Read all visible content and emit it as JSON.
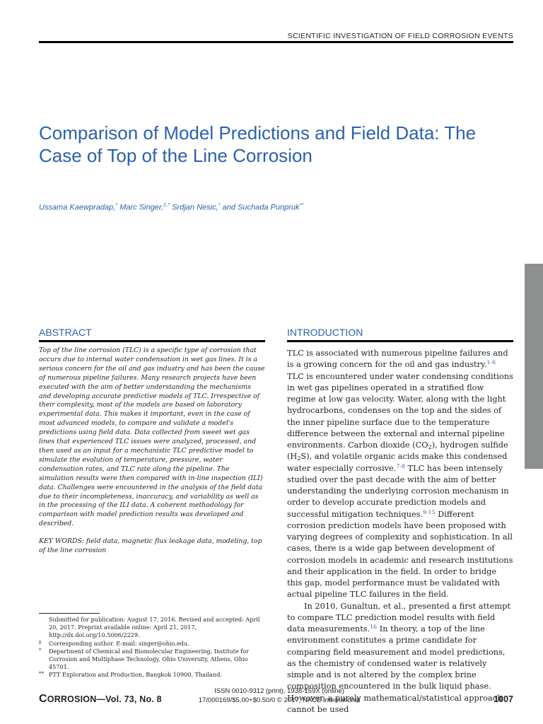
{
  "header": {
    "running_head": "SCIENTIFIC INVESTIGATION OF FIELD CORROSION EVENTS"
  },
  "article": {
    "title": "Comparison of Model Predictions and Field Data: The Case of Top of the Line Corrosion",
    "authors": {
      "a1": "Ussama Kaewpradap,",
      "a1_mark": "*",
      "a2": " Marc Singer,",
      "a2_mark": "‡,*",
      "a3": " Srdjan Nesic,",
      "a3_mark": "*",
      "a4": " and Suchada Punpruk",
      "a4_mark": "**"
    }
  },
  "abstract": {
    "heading": "ABSTRACT",
    "body": "Top of the line corrosion (TLC) is a specific type of corrosion that occurs due to internal water condensation in wet gas lines. It is a serious concern for the oil and gas industry and has been the cause of numerous pipeline failures. Many research projects have been executed with the aim of better understanding the mechanisms and developing accurate predictive models of TLC. Irrespective of their complexity, most of the models are based on laboratory experimental data. This makes it important, even in the case of most advanced models, to compare and validate a model's predictions using field data. Data collected from sweet wet gas lines that experienced TLC issues were analyzed, processed, and then used as an input for a mechanistic TLC predictive model to simulate the evolution of temperature, pressure, water condensation rates, and TLC rate along the pipeline. The simulation results were then compared with in-line inspection (ILI) data. Challenges were encountered in the analysis of the field data due to their incompleteness, inaccuracy, and variability as well as in the processing of the ILI data. A coherent methodology for comparison with model prediction results was developed and described.",
    "keywords": "KEY WORDS: field data, magnetic flux leakage data, modeling, top of the line corrosion"
  },
  "footnotes": [
    {
      "mark": "",
      "text": "Submitted for publication: August 17, 2016. Revised and accepted: April 20, 2017. Preprint available online: April 21, 2017, http://dx.doi.org/10.5006/2229."
    },
    {
      "mark": "‡",
      "text": "Corresponding author. E-mail: singer@ohio.edu."
    },
    {
      "mark": "*",
      "text": "Department of Chemical and Biomolecular Engineering, Institute for Corrosion and Multiphase Technology, Ohio University, Athens, Ohio 45701."
    },
    {
      "mark": "**",
      "text": "PTT Exploration and Production, Bangkok 10900, Thailand."
    }
  ],
  "introduction": {
    "heading": "INTRODUCTION",
    "p1": {
      "s1": "TLC is associated with numerous pipeline failures and is a growing concern for the oil and gas industry.",
      "c1": "1-6",
      "s2": " TLC is encountered under water condensing conditions in wet gas pipelines operated in a stratified flow regime at low gas velocity. Water, along with the light hydrocarbons, condenses on the top and the sides of the inner pipeline surface due to the temperature difference between the external and internal pipeline environments. Carbon dioxide (CO",
      "sub1": "2",
      "s3": "), hydrogen sulfide (H",
      "sub2": "2",
      "s4": "S), and volatile organic acids make this condensed water especially corrosive.",
      "c2": "7-8",
      "s5": " TLC has been intensely studied over the past decade with the aim of better understanding the underlying corrosion mechanism in order to develop accurate prediction models and successful mitigation techniques.",
      "c3": "9-15",
      "s6": " Different corrosion prediction models have been proposed with varying degrees of complexity and sophistication. In all cases, there is a wide gap between development of corrosion models in academic and research institutions and their application in the field. In order to bridge this gap, model performance must be validated with actual pipeline TLC failures in the field."
    },
    "p2": {
      "s1": "In 2010, Gunaltun, et al., presented a first attempt to compare TLC prediction model results with field data measurements.",
      "c1": "16",
      "s2": " In theory, a top of the line environment constitutes a prime candidate for comparing field measurement and model predictions, as the chemistry of condensed water is relatively simple and is not altered by the complex brine composition encountered in the bulk liquid phase. However, a purely mathematical/statistical approach cannot be used"
    }
  },
  "footer": {
    "journal_cap": "C",
    "journal_rest": "ORROSION—Vol. 73, No. 8",
    "issn": "ISSN 0010-9312 (print), 1938-159X (online)",
    "price": "17/000169/$5.00+$0.50/0 © 2017, NACE International",
    "page": "1007"
  },
  "colors": {
    "accent": "#2a62ae",
    "side_tab": "#8e9090",
    "text": "#231f20"
  }
}
